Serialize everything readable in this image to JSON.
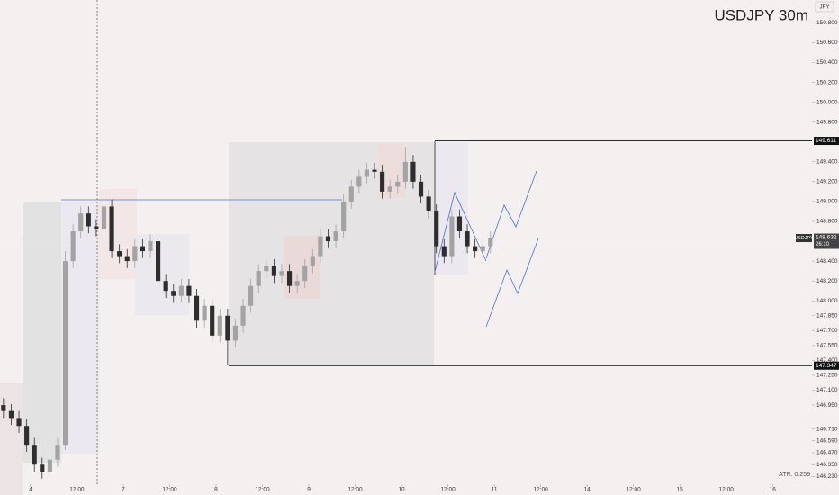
{
  "chart_data": {
    "type": "candlestick",
    "title": "USDJPY 30m",
    "currency": "JPY",
    "indicator": "ATR: 0.259",
    "symbol": "USDJPY",
    "last_price": 148.632,
    "countdown": "26:10",
    "levels": [
      149.611,
      147.347
    ],
    "up_color": "#a3a3a3",
    "down_color": "#2e2e2e",
    "xlim": [
      -7.9,
      202.2
    ],
    "ylim": [
      146.18,
      151.03
    ],
    "xticks": [
      {
        "value": 0,
        "label": "4"
      },
      {
        "value": 12,
        "label": "12:00"
      },
      {
        "value": 24,
        "label": "7"
      },
      {
        "value": 36,
        "label": "12:00"
      },
      {
        "value": 48,
        "label": "8"
      },
      {
        "value": 60,
        "label": "12:00"
      },
      {
        "value": 72,
        "label": "9"
      },
      {
        "value": 84,
        "label": "12:00"
      },
      {
        "value": 96,
        "label": "10"
      },
      {
        "value": 108,
        "label": "12:00"
      },
      {
        "value": 120,
        "label": "11"
      },
      {
        "value": 132,
        "label": "12:00"
      },
      {
        "value": 144,
        "label": "14"
      },
      {
        "value": 156,
        "label": "12:00"
      },
      {
        "value": 168,
        "label": "15"
      },
      {
        "value": 180,
        "label": "12:00"
      },
      {
        "value": 192,
        "label": "16"
      }
    ],
    "yticks": [
      {
        "value": 150.8,
        "label": "150.800"
      },
      {
        "value": 150.6,
        "label": "150.600"
      },
      {
        "value": 150.4,
        "label": "150.400"
      },
      {
        "value": 150.2,
        "label": "150.200"
      },
      {
        "value": 150.0,
        "label": "150.000"
      },
      {
        "value": 149.8,
        "label": "149.800"
      },
      {
        "value": 149.4,
        "label": "149.400"
      },
      {
        "value": 149.2,
        "label": "149.200"
      },
      {
        "value": 149.0,
        "label": "149.000"
      },
      {
        "value": 148.8,
        "label": "148.800"
      },
      {
        "value": 148.4,
        "label": "148.400"
      },
      {
        "value": 148.2,
        "label": "148.200"
      },
      {
        "value": 148.0,
        "label": "148.000"
      },
      {
        "value": 147.85,
        "label": "147.850"
      },
      {
        "value": 147.7,
        "label": "147.700"
      },
      {
        "value": 147.55,
        "label": "147.550"
      },
      {
        "value": 147.4,
        "label": "147.400"
      },
      {
        "value": 147.25,
        "label": "147.250"
      },
      {
        "value": 147.1,
        "label": "147.100"
      },
      {
        "value": 146.95,
        "label": "146.950"
      },
      {
        "value": 146.71,
        "label": "146.710"
      },
      {
        "value": 146.59,
        "label": "146.590"
      },
      {
        "value": 146.47,
        "label": "146.470"
      },
      {
        "value": 146.35,
        "label": "146.350"
      },
      {
        "value": 146.23,
        "label": "146.230"
      }
    ],
    "x": [
      -7,
      -5,
      -3,
      -1,
      1,
      3,
      5,
      7,
      9,
      11,
      13,
      15,
      17,
      19,
      21,
      23,
      25,
      27,
      29,
      31,
      33,
      35,
      37,
      39,
      41,
      43,
      45,
      47,
      49,
      51,
      53,
      55,
      57,
      59,
      61,
      63,
      65,
      67,
      69,
      71,
      73,
      75,
      77,
      79,
      81,
      83,
      85,
      87,
      89,
      91,
      93,
      95,
      97,
      99,
      101,
      103,
      105,
      107,
      109,
      111,
      113,
      115,
      117,
      119
    ],
    "open": [
      146.95,
      146.89,
      146.82,
      146.74,
      146.55,
      146.35,
      146.28,
      146.4,
      146.55,
      148.4,
      148.7,
      148.88,
      148.75,
      148.72,
      148.95,
      148.5,
      148.45,
      148.4,
      148.55,
      148.5,
      148.6,
      148.2,
      148.1,
      148.05,
      148.15,
      148.05,
      147.8,
      147.95,
      147.65,
      147.85,
      147.6,
      147.75,
      147.95,
      148.15,
      148.3,
      148.35,
      148.25,
      148.3,
      148.15,
      148.2,
      148.35,
      148.45,
      148.65,
      148.6,
      148.7,
      149.0,
      149.15,
      149.25,
      149.32,
      149.3,
      149.1,
      149.15,
      149.2,
      149.4,
      149.2,
      149.05,
      148.9,
      148.55,
      148.45,
      148.85,
      148.7,
      148.55,
      148.5,
      148.55
    ],
    "high": [
      147.02,
      146.96,
      146.89,
      146.81,
      146.62,
      146.42,
      146.47,
      146.62,
      148.5,
      148.77,
      148.95,
      148.95,
      148.82,
      149.08,
      149.02,
      148.57,
      148.52,
      148.62,
      148.62,
      148.67,
      148.67,
      148.27,
      148.17,
      148.22,
      148.22,
      148.12,
      148.02,
      148.02,
      147.92,
      147.92,
      147.82,
      148.02,
      148.22,
      148.37,
      148.42,
      148.42,
      148.37,
      148.37,
      148.27,
      148.42,
      148.52,
      148.72,
      148.72,
      148.77,
      149.07,
      149.22,
      149.32,
      149.39,
      149.39,
      149.37,
      149.22,
      149.27,
      149.55,
      149.47,
      149.27,
      149.12,
      148.97,
      148.62,
      148.92,
      148.92,
      148.77,
      148.62,
      148.62,
      148.7
    ],
    "low": [
      146.82,
      146.75,
      146.67,
      146.48,
      146.28,
      146.21,
      146.21,
      146.33,
      146.5,
      148.33,
      148.63,
      148.68,
      148.65,
      148.65,
      148.43,
      148.38,
      148.33,
      148.33,
      148.43,
      148.43,
      148.13,
      148.03,
      147.98,
      147.98,
      147.98,
      147.73,
      147.73,
      147.58,
      147.58,
      147.347,
      147.53,
      147.68,
      147.88,
      148.08,
      148.23,
      148.18,
      148.18,
      148.08,
      148.08,
      148.13,
      148.28,
      148.38,
      148.53,
      148.53,
      148.63,
      148.93,
      149.08,
      149.18,
      149.23,
      149.03,
      149.03,
      149.08,
      149.13,
      149.13,
      148.98,
      148.83,
      148.48,
      148.38,
      148.38,
      148.63,
      148.48,
      148.43,
      148.43,
      148.48
    ],
    "close": [
      146.89,
      146.82,
      146.74,
      146.55,
      146.35,
      146.28,
      146.4,
      146.55,
      148.4,
      148.7,
      148.88,
      148.75,
      148.72,
      148.95,
      148.5,
      148.45,
      148.4,
      148.55,
      148.5,
      148.6,
      148.2,
      148.1,
      148.05,
      148.15,
      148.05,
      147.8,
      147.95,
      147.65,
      147.85,
      147.6,
      147.75,
      147.95,
      148.15,
      148.3,
      148.35,
      148.25,
      148.3,
      148.15,
      148.2,
      148.35,
      148.45,
      148.65,
      148.6,
      148.7,
      149.0,
      149.15,
      149.25,
      149.32,
      149.3,
      149.1,
      149.15,
      149.2,
      149.4,
      149.2,
      149.05,
      148.9,
      148.55,
      148.45,
      148.85,
      148.7,
      148.55,
      148.5,
      148.55,
      148.63
    ]
  }
}
